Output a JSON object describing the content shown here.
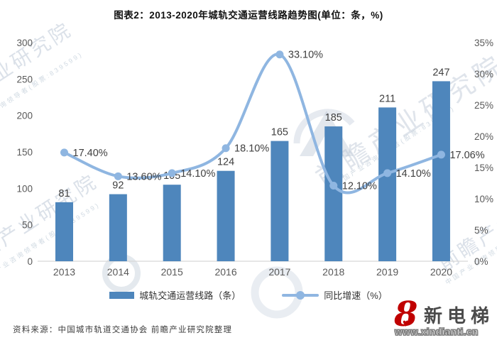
{
  "title": "图表2：2013-2020年城轨交通运营线路趋势图(单位：条，%)",
  "chart_data": {
    "type": "bar",
    "subtype": "bar+line combo, dual axis",
    "categories": [
      "2013",
      "2014",
      "2015",
      "2016",
      "2017",
      "2018",
      "2019",
      "2020"
    ],
    "series": [
      {
        "name": "城轨交通运营线路（条）",
        "type": "bar",
        "axis": "left",
        "values": [
          81,
          92,
          105,
          124,
          165,
          185,
          211,
          247
        ],
        "labels": [
          "81",
          "92",
          "105",
          "124",
          "165",
          "185",
          "211",
          "247"
        ]
      },
      {
        "name": "同比增速（%）",
        "type": "line",
        "axis": "right",
        "values": [
          17.4,
          13.6,
          14.1,
          18.1,
          33.1,
          12.1,
          14.1,
          17.06
        ],
        "labels": [
          "17.40%",
          "13.60%",
          "14.10%",
          "18.10%",
          "33.10%",
          "12.10%",
          "14.10%",
          "17.06%"
        ]
      }
    ],
    "left_axis": {
      "min": 0,
      "max": 300,
      "ticks": [
        "0",
        "50",
        "100",
        "150",
        "200",
        "250",
        "300"
      ]
    },
    "right_axis": {
      "min": 0,
      "max": 35,
      "ticks": [
        "0%",
        "5%",
        "10%",
        "15%",
        "20%",
        "25%",
        "30%",
        "35%"
      ]
    },
    "grid": false,
    "legend_position": "bottom",
    "xlabel": "",
    "ylabel": ""
  },
  "legend": {
    "bar_label": "城轨交通运营线路（条）",
    "line_label": "同比增速（%）"
  },
  "source_note": "资料来源：中国城市轨道交通协会 前瞻产业研究院整理",
  "watermark": {
    "text": "前瞻产业研究院",
    "subtext": "中国产业咨询领导者(股票:839599)"
  },
  "logo": {
    "mark": "8",
    "heart": "♥",
    "brand": "新电梯",
    "url": "www.xindianti.cn",
    "accent": "#c00000"
  },
  "colors": {
    "bar": "#4e86bc",
    "line": "#8fb6e1",
    "axis_text": "#595959",
    "label_text": "#3f3f3f",
    "baseline": "#d8d8d8",
    "title_text": "#111111",
    "watermark": "#b7c4d3"
  }
}
